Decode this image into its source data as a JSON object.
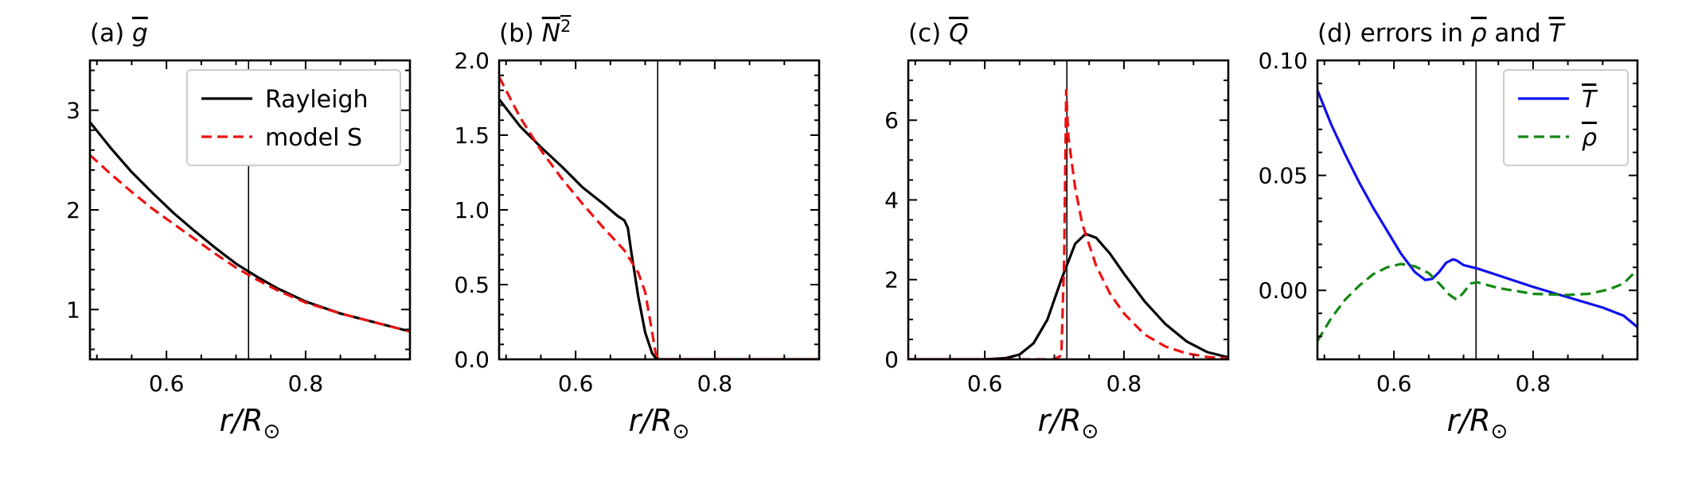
{
  "chart_data": [
    {
      "id": "a",
      "type": "line",
      "title_prefix": "(a)",
      "title_var": "g",
      "title_bar": true,
      "xlabel_var": "r/R",
      "xlabel_sub": "⊙",
      "xlim": [
        0.49,
        0.95
      ],
      "ylim": [
        0.5,
        3.5
      ],
      "xticks": [
        0.6,
        0.8
      ],
      "xtick_labels": [
        "0.6",
        "0.8"
      ],
      "yticks": [
        1,
        2,
        3
      ],
      "ytick_labels": [
        "1",
        "2",
        "3"
      ],
      "y_minor_step": 0.2,
      "vline_x": 0.718,
      "legend": {
        "position": "top-right",
        "entries": [
          {
            "label": "Rayleigh",
            "color": "#000000",
            "dash": "solid"
          },
          {
            "label": "model S",
            "color": "#ee1111",
            "dash": "dashed"
          }
        ]
      },
      "series": [
        {
          "name": "Rayleigh",
          "color": "#000000",
          "dash": "solid",
          "x": [
            0.49,
            0.52,
            0.55,
            0.58,
            0.61,
            0.64,
            0.67,
            0.7,
            0.73,
            0.76,
            0.8,
            0.85,
            0.9,
            0.95
          ],
          "y": [
            2.88,
            2.62,
            2.38,
            2.17,
            1.97,
            1.79,
            1.62,
            1.46,
            1.33,
            1.21,
            1.08,
            0.96,
            0.87,
            0.78
          ]
        },
        {
          "name": "model S",
          "color": "#ee1111",
          "dash": "dashed",
          "x": [
            0.49,
            0.52,
            0.55,
            0.58,
            0.61,
            0.64,
            0.67,
            0.7,
            0.73,
            0.76,
            0.8,
            0.85,
            0.9,
            0.95
          ],
          "y": [
            2.55,
            2.36,
            2.18,
            2.01,
            1.86,
            1.71,
            1.56,
            1.42,
            1.3,
            1.19,
            1.07,
            0.96,
            0.87,
            0.78
          ]
        }
      ]
    },
    {
      "id": "b",
      "type": "line",
      "title_prefix": "(b)",
      "title_var": "N",
      "title_sup": "2",
      "title_bar": true,
      "xlabel_var": "r/R",
      "xlabel_sub": "⊙",
      "xlim": [
        0.49,
        0.95
      ],
      "ylim": [
        0.0,
        2.0
      ],
      "xticks": [
        0.6,
        0.8
      ],
      "xtick_labels": [
        "0.6",
        "0.8"
      ],
      "yticks": [
        0.0,
        0.5,
        1.0,
        1.5,
        2.0
      ],
      "ytick_labels": [
        "0.0",
        "0.5",
        "1.0",
        "1.5",
        "2.0"
      ],
      "y_minor_step": 0.1,
      "vline_x": 0.718,
      "series": [
        {
          "name": "Rayleigh",
          "color": "#000000",
          "dash": "solid",
          "x": [
            0.49,
            0.52,
            0.55,
            0.58,
            0.61,
            0.64,
            0.66,
            0.67,
            0.675,
            0.68,
            0.69,
            0.7,
            0.71,
            0.715,
            0.72,
            0.75,
            0.8,
            0.85,
            0.9,
            0.95
          ],
          "y": [
            1.74,
            1.56,
            1.42,
            1.29,
            1.15,
            1.04,
            0.96,
            0.93,
            0.88,
            0.72,
            0.42,
            0.18,
            0.04,
            0.01,
            0.0,
            0.0,
            0.0,
            0.0,
            0.0,
            0.0
          ]
        },
        {
          "name": "model S",
          "color": "#ee1111",
          "dash": "dashed",
          "x": [
            0.49,
            0.52,
            0.55,
            0.58,
            0.61,
            0.64,
            0.67,
            0.69,
            0.7,
            0.71,
            0.715,
            0.72,
            0.75,
            0.8,
            0.85,
            0.9,
            0.95
          ],
          "y": [
            1.89,
            1.62,
            1.4,
            1.21,
            1.04,
            0.88,
            0.73,
            0.58,
            0.45,
            0.18,
            0.04,
            0.0,
            0.0,
            0.0,
            0.0,
            0.0,
            0.0
          ]
        }
      ]
    },
    {
      "id": "c",
      "type": "line",
      "title_prefix": "(c)",
      "title_var": "Q",
      "title_bar": true,
      "xlabel_var": "r/R",
      "xlabel_sub": "⊙",
      "xlim": [
        0.49,
        0.95
      ],
      "ylim": [
        0.0,
        7.5
      ],
      "xticks": [
        0.6,
        0.8
      ],
      "xtick_labels": [
        "0.6",
        "0.8"
      ],
      "yticks": [
        0,
        2,
        4,
        6
      ],
      "ytick_labels": [
        "0",
        "2",
        "4",
        "6"
      ],
      "y_minor_step": 0.5,
      "vline_x": 0.718,
      "series": [
        {
          "name": "Rayleigh",
          "color": "#000000",
          "dash": "solid",
          "x": [
            0.49,
            0.6,
            0.63,
            0.65,
            0.67,
            0.69,
            0.71,
            0.73,
            0.745,
            0.76,
            0.78,
            0.8,
            0.83,
            0.86,
            0.89,
            0.92,
            0.95
          ],
          "y": [
            0.0,
            0.0,
            0.03,
            0.12,
            0.4,
            1.0,
            2.0,
            2.9,
            3.15,
            3.05,
            2.65,
            2.15,
            1.45,
            0.88,
            0.45,
            0.18,
            0.05
          ]
        },
        {
          "name": "model S",
          "color": "#ee1111",
          "dash": "dashed",
          "x": [
            0.49,
            0.7,
            0.71,
            0.714,
            0.717,
            0.72,
            0.73,
            0.74,
            0.76,
            0.78,
            0.8,
            0.83,
            0.86,
            0.89,
            0.92,
            0.95
          ],
          "y": [
            0.0,
            0.0,
            0.1,
            2.5,
            6.75,
            5.6,
            4.3,
            3.4,
            2.35,
            1.65,
            1.15,
            0.62,
            0.32,
            0.15,
            0.06,
            0.02
          ]
        }
      ]
    },
    {
      "id": "d",
      "type": "line",
      "title_text": "(d) errors in ",
      "title_var1": "ρ",
      "title_mid": " and ",
      "title_var2": "T",
      "title_bar": true,
      "xlabel_var": "r/R",
      "xlabel_sub": "⊙",
      "xlim": [
        0.49,
        0.95
      ],
      "ylim": [
        -0.03,
        0.1
      ],
      "xticks": [
        0.6,
        0.8
      ],
      "xtick_labels": [
        "0.6",
        "0.8"
      ],
      "yticks": [
        0.0,
        0.05,
        0.1
      ],
      "ytick_labels": [
        "0.00",
        "0.05",
        "0.10"
      ],
      "y_minor_step": 0.01,
      "vline_x": 0.718,
      "legend": {
        "position": "top-right",
        "entries": [
          {
            "label": "T",
            "bar": true,
            "color": "#1010ee",
            "dash": "solid"
          },
          {
            "label": "ρ",
            "bar": true,
            "color": "#118811",
            "dash": "dashed"
          }
        ]
      },
      "series": [
        {
          "name": "T",
          "color": "#1010ee",
          "dash": "solid",
          "x": [
            0.49,
            0.51,
            0.53,
            0.55,
            0.57,
            0.59,
            0.61,
            0.63,
            0.645,
            0.655,
            0.665,
            0.675,
            0.685,
            0.69,
            0.7,
            0.72,
            0.75,
            0.8,
            0.85,
            0.9,
            0.93,
            0.95
          ],
          "y": [
            0.087,
            0.072,
            0.059,
            0.047,
            0.036,
            0.026,
            0.016,
            0.008,
            0.0045,
            0.005,
            0.008,
            0.012,
            0.0135,
            0.013,
            0.011,
            0.0095,
            0.0065,
            0.0015,
            -0.003,
            -0.0075,
            -0.011,
            -0.016
          ]
        },
        {
          "name": "ρ",
          "color": "#118811",
          "dash": "dashed",
          "x": [
            0.49,
            0.51,
            0.53,
            0.55,
            0.57,
            0.59,
            0.61,
            0.63,
            0.65,
            0.665,
            0.68,
            0.69,
            0.7,
            0.71,
            0.72,
            0.75,
            0.8,
            0.85,
            0.88,
            0.91,
            0.93,
            0.95
          ],
          "y": [
            -0.022,
            -0.012,
            -0.004,
            0.002,
            0.007,
            0.01,
            0.0115,
            0.0105,
            0.0075,
            0.003,
            -0.002,
            -0.004,
            -0.001,
            0.003,
            0.0035,
            0.001,
            -0.0015,
            -0.002,
            -0.0015,
            0.0005,
            0.003,
            0.009
          ]
        }
      ]
    }
  ]
}
